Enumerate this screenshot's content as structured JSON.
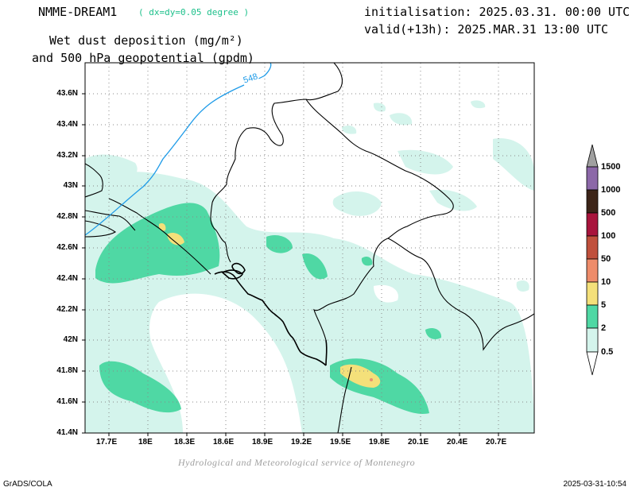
{
  "header": {
    "model": "NMME-DREAM1",
    "resolution": "( dx=dy=0.05 degree )",
    "init": "initialisation: 2025.03.31. 00:00 UTC",
    "valid": "valid(+13h): 2025.MAR.31 13:00 UTC",
    "title_line1": "Wet dust deposition (mg/m²)",
    "title_line2": "and 500 hPa geopotential (gpdm)"
  },
  "map": {
    "lat_ticks": [
      "41.4N",
      "41.6N",
      "41.8N",
      "42N",
      "42.2N",
      "42.4N",
      "42.6N",
      "42.8N",
      "43N",
      "43.2N",
      "43.4N",
      "43.6N"
    ],
    "lon_ticks": [
      "17.7E",
      "18E",
      "18.3E",
      "18.6E",
      "18.9E",
      "19.2E",
      "19.5E",
      "19.8E",
      "20.1E",
      "20.4E",
      "20.7E"
    ],
    "contour_label": "548",
    "contour_color": "#1e9be8"
  },
  "colorbar": {
    "levels": [
      "1500",
      "1000",
      "500",
      "100",
      "50",
      "10",
      "5",
      "2",
      "0.5"
    ],
    "colors": {
      "c0_5": "#d4f4ec",
      "c2": "#4fd8a4",
      "c5": "#f4e07a",
      "c10": "#ee8c6a",
      "c50": "#c0503c",
      "c100": "#8c1c3c",
      "c500": "#a8143c",
      "c1000": "#3c2418",
      "c1500": "#8c68a8",
      "over": "#a0a0a0"
    }
  },
  "footer": {
    "credit": "Hydrological and Meteorological service of Montenegro",
    "left": "GrADS/COLA",
    "right": "2025-03-31-10:54"
  }
}
